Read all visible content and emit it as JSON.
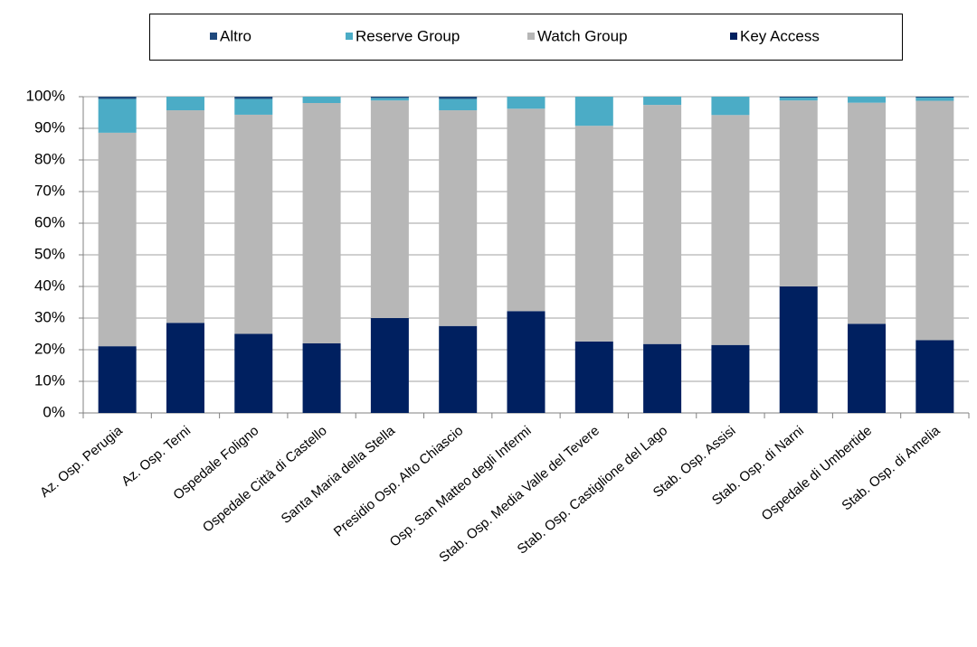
{
  "chart_data": {
    "type": "stacked_bar",
    "categories": [
      "Az. Osp. Perugia",
      "Az. Osp. Terni",
      "Ospedale Foligno",
      "Ospedale Città di Castello",
      "Santa Maria della Stella",
      "Presidio Osp. Alto Chiascio",
      "Osp. San Matteo degli Infermi",
      "Stab. Osp. Media Valle del Tevere",
      "Stab. Osp. Castiglione del Lago",
      "Stab. Osp. Assisi",
      "Stab. Osp. di Narni",
      "Ospedale di Umbertide",
      "Stab. Osp. di Amelia"
    ],
    "series": [
      {
        "name": "Key Access",
        "color": "#002060",
        "values": [
          21.1,
          28.5,
          25,
          22,
          30,
          27.5,
          32.2,
          22.6,
          21.8,
          21.5,
          40,
          28.2,
          23
        ]
      },
      {
        "name": "Watch Group",
        "color": "#b7b7b7",
        "values": [
          67.5,
          67.2,
          69.3,
          76,
          68.8,
          68.2,
          64,
          68.2,
          75.6,
          72.7,
          58.8,
          69.9,
          75.7
        ]
      },
      {
        "name": "Reserve Group",
        "color": "#4bacc6",
        "values": [
          10.7,
          4.3,
          5,
          2,
          0.8,
          3.6,
          3.8,
          9.2,
          2.6,
          5.8,
          0.9,
          1.9,
          1
        ]
      },
      {
        "name": "Altro",
        "color": "#1f497d",
        "values": [
          0.7,
          0,
          0.7,
          0,
          0.4,
          0.7,
          0,
          0,
          0,
          0,
          0.3,
          0,
          0.3
        ]
      }
    ],
    "ylim": [
      0,
      100
    ],
    "yticks": [
      {
        "value": 0,
        "label": "0%"
      },
      {
        "value": 10,
        "label": "10%"
      },
      {
        "value": 20,
        "label": "20%"
      },
      {
        "value": 30,
        "label": "30%"
      },
      {
        "value": 40,
        "label": "40%"
      },
      {
        "value": 50,
        "label": "50%"
      },
      {
        "value": 60,
        "label": "60%"
      },
      {
        "value": 70,
        "label": "70%"
      },
      {
        "value": 80,
        "label": "80%"
      },
      {
        "value": 90,
        "label": "90%"
      },
      {
        "value": 100,
        "label": "100%"
      }
    ],
    "grid": true,
    "legend": "top"
  }
}
